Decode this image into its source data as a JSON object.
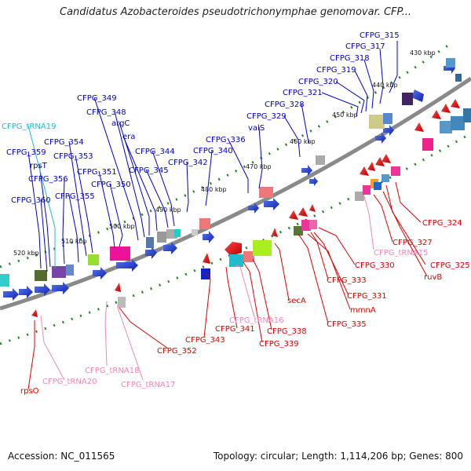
{
  "title": "Candidatus Azobacteroides pseudotrichonymphae genomovar. CFP...",
  "footer": {
    "accession": "Accession: NC_011565",
    "summary": "Topology: circular; Length: 1,114,206 bp; Genes: 800"
  },
  "ticks": [
    "430 kbp",
    "440 kbp",
    "450 kbp",
    "460 kbp",
    "470 kbp",
    "480 kbp",
    "490 kbp",
    "500 kbp",
    "510 kbp",
    "520 kbp"
  ],
  "colors": {
    "forward": "#0000dd",
    "reverse": "#dd0000",
    "trna_forward": "#22bbcc",
    "trna_reverse": "#ee88bb",
    "backbone": "#888888",
    "tick_dot": "#228822"
  },
  "labels_forward": [
    "CFPG_315",
    "CFPG_317",
    "CFPG_318",
    "CFPG_319",
    "CFPG_320",
    "CFPG_321",
    "CFPG_328",
    "CFPG_329",
    "valS",
    "CFPG_336",
    "CFPG_340",
    "CFPG_342",
    "CFPG_344",
    "CFPG_345",
    "era",
    "argC",
    "CFPG_348",
    "CFPG_349",
    "CFPG_350",
    "CFPG_351",
    "CFPG_353",
    "CFPG_354",
    "CFPG_355",
    "CFPG_356",
    "rpsT",
    "CFPG_359",
    "CFPG_360"
  ],
  "label_trna_forward": "CFPG_tRNA19",
  "labels_reverse": [
    "CFPG_324",
    "CFPG_327",
    "CFPG_325",
    "ruvB",
    "CFPG_330",
    "CFPG_333",
    "CFPG_331",
    "mmnA",
    "CFPG_335",
    "secA",
    "CFPG_338",
    "CFPG_339",
    "CFPG_341",
    "CFPG_343",
    "CFPG_352",
    "rpsO"
  ],
  "labels_trna_reverse": [
    "CFPG_tRNA15",
    "CFPG_tRNA16",
    "CFPG_tRNA17",
    "CFPG_tRNA18",
    "CFPG_tRNA20"
  ]
}
